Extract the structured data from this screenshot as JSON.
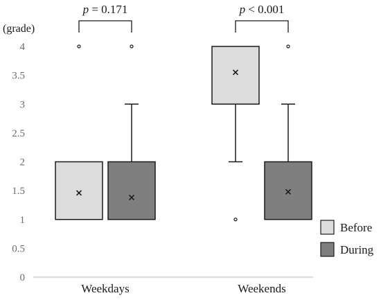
{
  "chart_data": {
    "type": "box",
    "ylabel": "(grade)",
    "ylim": [
      0,
      4
    ],
    "yticks": [
      "0",
      "0.5",
      "1",
      "1.5",
      "2",
      "2.5",
      "3",
      "3.5",
      "4"
    ],
    "categories": [
      "Weekdays",
      "Weekends"
    ],
    "series": [
      {
        "name": "Before",
        "color": "#dcdcdc",
        "boxes": [
          {
            "category": "Weekdays",
            "min": 1,
            "q1": 1,
            "median": 1,
            "q3": 2,
            "max": 2,
            "mean": 1.46,
            "outliers": [
              4
            ]
          },
          {
            "category": "Weekends",
            "min": 2,
            "q1": 3,
            "median": 3,
            "q3": 4,
            "max": 4,
            "mean": 3.55,
            "outliers": [
              1
            ]
          }
        ]
      },
      {
        "name": "During",
        "color": "#7f7f7f",
        "boxes": [
          {
            "category": "Weekdays",
            "min": 1,
            "q1": 1,
            "median": 1,
            "q3": 2,
            "max": 3,
            "mean": 1.38,
            "outliers": [
              4
            ]
          },
          {
            "category": "Weekends",
            "min": 1,
            "q1": 1,
            "median": 1,
            "q3": 2,
            "max": 3,
            "mean": 1.48,
            "outliers": [
              4
            ]
          }
        ]
      }
    ],
    "annotations": [
      {
        "category": "Weekdays",
        "p_symbol": "p",
        "p_rest": " = 0.171"
      },
      {
        "category": "Weekends",
        "p_symbol": "p",
        "p_rest": " < 0.001"
      }
    ],
    "legend": {
      "position": "bottom-right",
      "entries": [
        "Before",
        "During"
      ]
    }
  }
}
